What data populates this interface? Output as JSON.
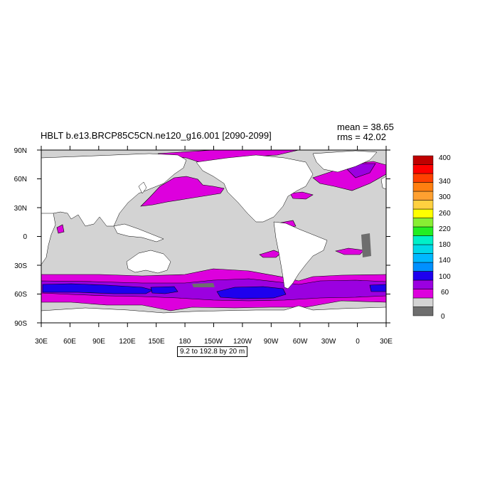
{
  "title": "HBLT b.e13.BRCP85C5CN.ne120_g16.001 [2090-2099]",
  "stats": {
    "mean": "mean = 38.65",
    "rms": "rms = 42.02"
  },
  "contour_info": "9.2 to 192.8 by 20 m",
  "lat_labels": [
    "90N",
    "60N",
    "30N",
    "0",
    "30S",
    "60S",
    "90S"
  ],
  "lon_labels": [
    "30E",
    "60E",
    "90E",
    "120E",
    "150E",
    "180",
    "150W",
    "120W",
    "90W",
    "60W",
    "30W",
    "0",
    "30E"
  ],
  "colorbar": {
    "colors": [
      "#6e6e6e",
      "#d3d3d3",
      "#dd00dd",
      "#9b00e0",
      "#1e00ee",
      "#0090ff",
      "#00b8ff",
      "#00d8e8",
      "#00f0c8",
      "#22ee22",
      "#88ee33",
      "#ffff00",
      "#ffd040",
      "#ffa030",
      "#ff7f10",
      "#ff4000",
      "#ff0000",
      "#c00000"
    ],
    "labels": [
      "0",
      "60",
      "100",
      "140",
      "180",
      "220",
      "260",
      "300",
      "340",
      "400"
    ]
  },
  "colors": {
    "land": "#ffffff",
    "ocean_low": "#d3d3d3",
    "ocean_zero": "#6e6e6e",
    "band_60": "#dd00dd",
    "band_80": "#9b00e0",
    "band_100": "#1e00ee"
  }
}
